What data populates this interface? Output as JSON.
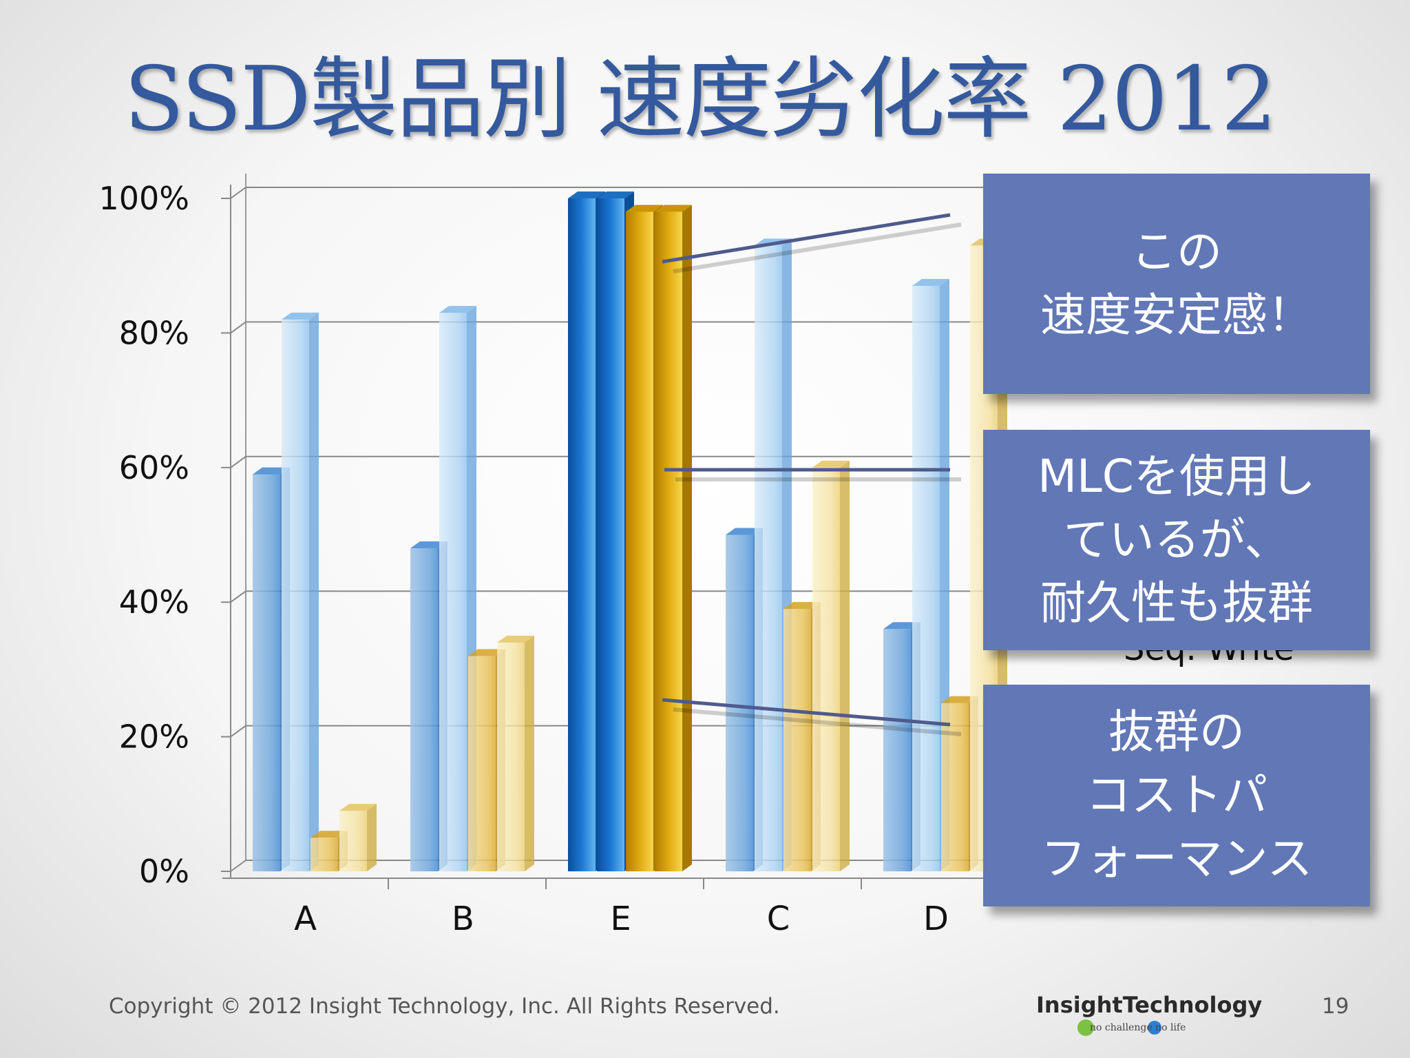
{
  "slide": {
    "title": "SSD製品別 速度劣化率 2012",
    "footer": "Copyright © 2012 Insight Technology, Inc. All Rights Reserved.",
    "page_number": "19",
    "logo": {
      "name": "InsightTechnology",
      "tagline": "no challenge no life"
    }
  },
  "callouts": [
    {
      "text": "この\n速度安定感！"
    },
    {
      "text": "MLCを使用し\nているが、\n耐久性も抜群"
    },
    {
      "text": "抜群の\nコストパ\nフォーマンス"
    }
  ],
  "legend_visible_fragment": "Seq. Write",
  "colors": {
    "blue_dark": "#3a7fc8",
    "blue_light": "#9cc9ef",
    "gold_dark": "#d9a923",
    "gold_light": "#f0d98a",
    "highlight_blue": "#0e64c2",
    "highlight_gold": "#dba20a",
    "callout_bg": "#6177b6",
    "title": "#34599d"
  },
  "chart_data": {
    "type": "bar",
    "style": "3d-clustered",
    "categories": [
      "A",
      "B",
      "E",
      "C",
      "D"
    ],
    "highlight_category": "E",
    "y_ticks": [
      "0%",
      "20%",
      "40%",
      "60%",
      "80%",
      "100%"
    ],
    "ylim": [
      0,
      100
    ],
    "grid": true,
    "series": [
      {
        "color": "blue_dark",
        "values": [
          59,
          48,
          100,
          50,
          36
        ]
      },
      {
        "color": "blue_light",
        "values": [
          82,
          83,
          100,
          93,
          87
        ]
      },
      {
        "color": "gold_dark",
        "values": [
          5,
          32,
          98,
          39,
          25
        ]
      },
      {
        "name": "Seq. Write",
        "color": "gold_light",
        "values": [
          9,
          34,
          98,
          60,
          93
        ]
      }
    ]
  }
}
